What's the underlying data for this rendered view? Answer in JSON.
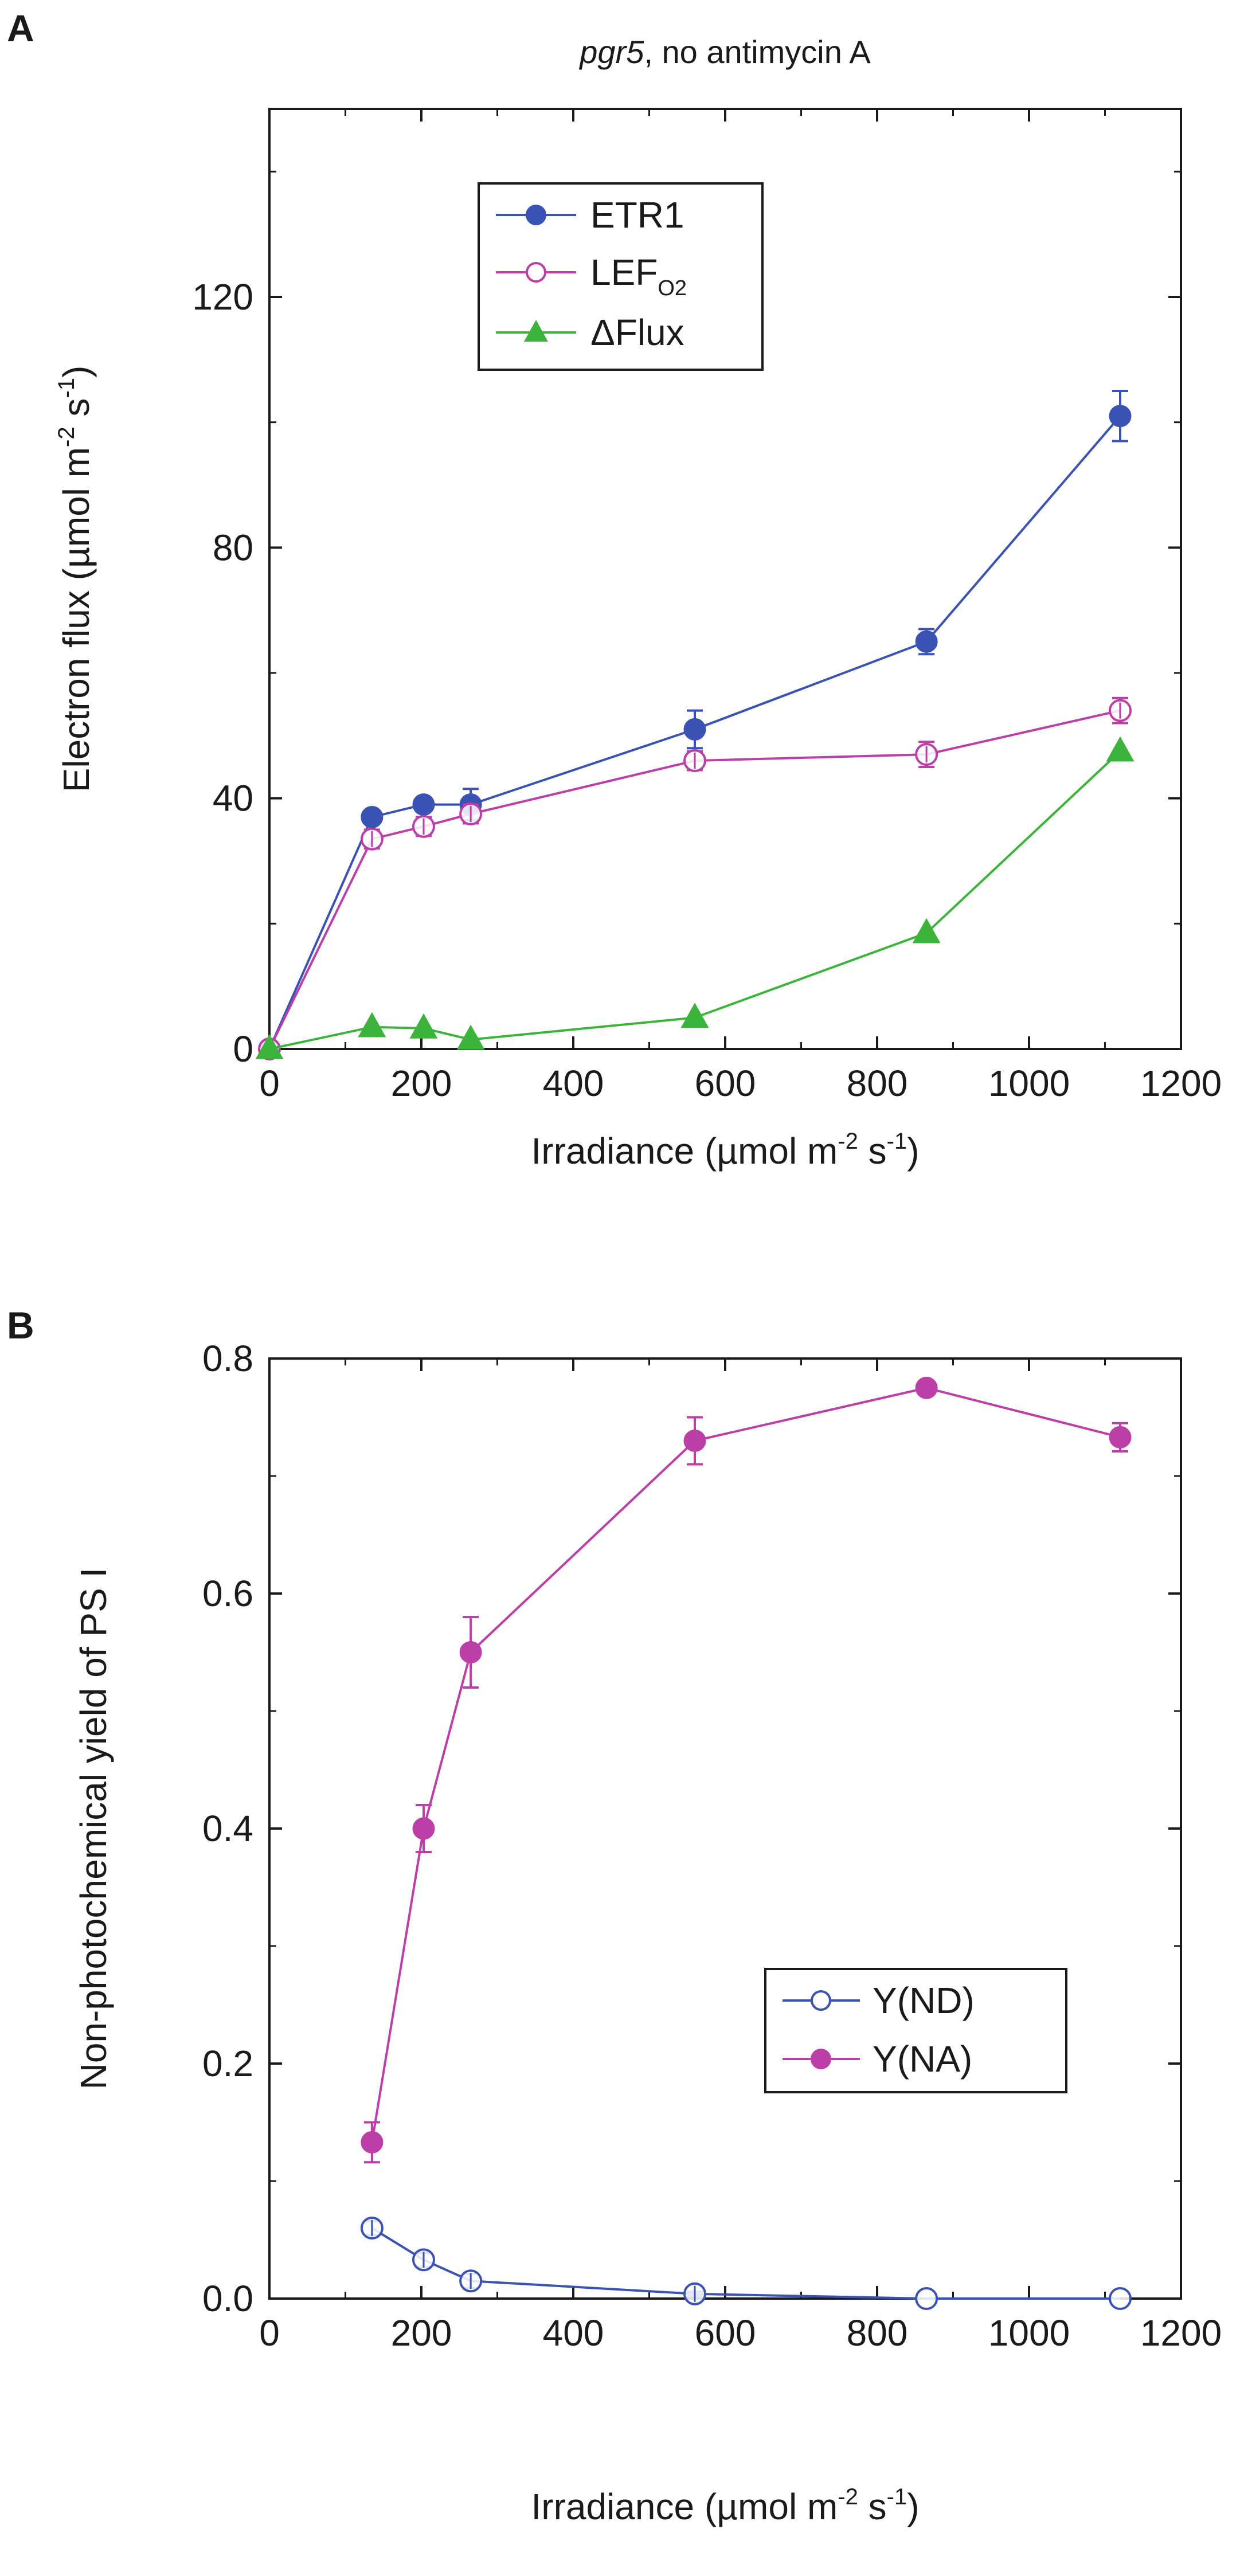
{
  "chart_data": [
    {
      "panel": "A",
      "type": "line",
      "title": "pgr5, no antimycin A",
      "title_italic_part": "pgr5",
      "title_rest": ", no antimycin A",
      "xlabel": {
        "main": "Irradiance  (µmol m",
        "sup1": "-2",
        "mid": " s",
        "sup2": "-1",
        "end": ")"
      },
      "ylabel": {
        "main": "Electron flux  (µmol m",
        "sup1": "-2",
        "mid": " s",
        "sup2": "-1",
        "end": ")"
      },
      "xlim": [
        0,
        1200
      ],
      "ylim": [
        0,
        150
      ],
      "xticks": [
        0,
        200,
        400,
        600,
        800,
        1000,
        1200
      ],
      "yticks": [
        0,
        40,
        80,
        120
      ],
      "xtick_labels": [
        "0",
        "200",
        "400",
        "600",
        "800",
        "1000",
        "1200"
      ],
      "ytick_labels": [
        "0",
        "40",
        "80",
        "120"
      ],
      "legend_position": "top-left",
      "series": [
        {
          "name": "ETR1",
          "legend_label": "ETR1",
          "color": "#3a52b4",
          "marker": "filled-circle",
          "x": [
            0,
            135,
            203,
            265,
            560,
            865,
            1120
          ],
          "y": [
            0,
            37,
            39,
            39,
            51,
            65,
            101
          ],
          "err": [
            0,
            1,
            1,
            2.5,
            3,
            2,
            4
          ]
        },
        {
          "name": "LEF_O2",
          "legend_label": "LEF",
          "legend_sub": "O2",
          "color": "#bb3fa6",
          "marker": "open-circle",
          "x": [
            0,
            135,
            203,
            265,
            560,
            865,
            1120
          ],
          "y": [
            0,
            33.5,
            35.5,
            37.5,
            46,
            47,
            54
          ],
          "err": [
            0,
            1.5,
            1.5,
            1.5,
            1.5,
            2,
            2
          ]
        },
        {
          "name": "ΔFlux",
          "legend_label": "ΔFlux",
          "color": "#3cb43c",
          "marker": "filled-triangle",
          "x": [
            0,
            135,
            203,
            265,
            560,
            865,
            1120
          ],
          "y": [
            0,
            3.5,
            3.3,
            1.5,
            5,
            18.5,
            47.5
          ],
          "err": [
            0,
            0,
            0,
            0,
            0,
            0,
            0
          ]
        }
      ]
    },
    {
      "panel": "B",
      "type": "line",
      "title": "",
      "xlabel": {
        "main": "Irradiance  (µmol m",
        "sup1": "-2",
        "mid": " s",
        "sup2": "-1",
        "end": ")"
      },
      "ylabel": {
        "main": "Non-photochemical yield of PS I",
        "sup1": "",
        "mid": "",
        "sup2": "",
        "end": ""
      },
      "xlim": [
        0,
        1200
      ],
      "ylim": [
        0,
        0.8
      ],
      "xticks": [
        0,
        200,
        400,
        600,
        800,
        1000,
        1200
      ],
      "yticks": [
        0,
        0.2,
        0.4,
        0.6,
        0.8
      ],
      "xtick_labels": [
        "0",
        "200",
        "400",
        "600",
        "800",
        "1000",
        "1200"
      ],
      "ytick_labels": [
        "0.0",
        "0.2",
        "0.4",
        "0.6",
        "0.8"
      ],
      "legend_position": "bottom-right",
      "series": [
        {
          "name": "Y(ND)",
          "legend_label": "Y(ND)",
          "color": "#3a52b4",
          "marker": "open-circle",
          "x": [
            135,
            203,
            265,
            560,
            865,
            1120
          ],
          "y": [
            0.06,
            0.033,
            0.015,
            0.004,
            0.0,
            0.0
          ],
          "err": [
            0.006,
            0.006,
            0.006,
            0.002,
            0,
            0
          ]
        },
        {
          "name": "Y(NA)",
          "legend_label": "Y(NA)",
          "color": "#bb3fa6",
          "marker": "filled-circle",
          "x": [
            135,
            203,
            265,
            560,
            865,
            1120
          ],
          "y": [
            0.133,
            0.4,
            0.55,
            0.73,
            0.775,
            0.733
          ],
          "err": [
            0.017,
            0.02,
            0.03,
            0.02,
            0.006,
            0.012
          ]
        }
      ]
    }
  ]
}
